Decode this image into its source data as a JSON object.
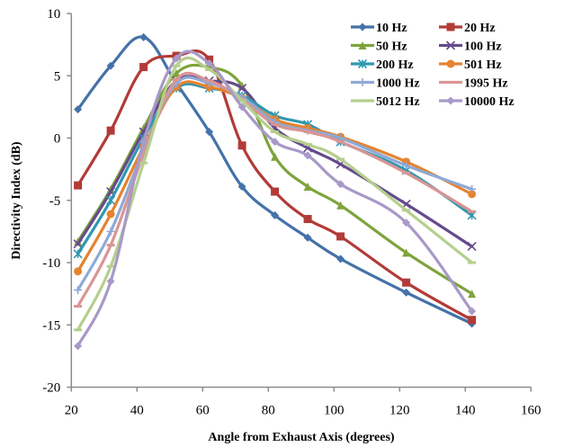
{
  "chart_data": {
    "type": "line",
    "title": "",
    "xlabel": "Angle from Exhaust Axis (degrees)",
    "ylabel": "Directivity Index (dB)",
    "xlim": [
      20,
      160
    ],
    "ylim": [
      -20,
      10
    ],
    "xticks": [
      20,
      40,
      60,
      80,
      100,
      120,
      140,
      160
    ],
    "yticks": [
      10,
      5,
      0,
      -5,
      -10,
      -15,
      -20
    ],
    "grid": false,
    "legend_position": "top-right",
    "smooth": true,
    "x": [
      22,
      32,
      42,
      52,
      62,
      72,
      82,
      92,
      102,
      122,
      142
    ],
    "series": [
      {
        "name": "10 Hz",
        "color": "#4472a8",
        "marker": "diamond",
        "values": [
          2.3,
          5.8,
          8.1,
          4.4,
          0.5,
          -3.9,
          -6.2,
          -8.0,
          -9.7,
          -12.4,
          -14.9
        ]
      },
      {
        "name": "20 Hz",
        "color": "#b23b38",
        "marker": "square",
        "values": [
          -3.8,
          0.6,
          5.7,
          6.6,
          6.3,
          -0.6,
          -4.3,
          -6.5,
          -7.9,
          -11.6,
          -14.6
        ]
      },
      {
        "name": "50 Hz",
        "color": "#7fa33c",
        "marker": "triangle",
        "values": [
          -8.3,
          -4.1,
          0.8,
          5.2,
          5.7,
          4.2,
          -1.5,
          -3.9,
          -5.4,
          -9.2,
          -12.5
        ]
      },
      {
        "name": "100 Hz",
        "color": "#654a8c",
        "marker": "x",
        "values": [
          -8.5,
          -4.3,
          0.5,
          4.6,
          4.6,
          4.0,
          0.8,
          -0.8,
          -2.1,
          -5.3,
          -8.7
        ]
      },
      {
        "name": "200 Hz",
        "color": "#2f98b0",
        "marker": "star",
        "values": [
          -9.3,
          -5.0,
          0.0,
          4.0,
          4.0,
          3.4,
          1.8,
          1.1,
          -0.3,
          -2.6,
          -6.2
        ]
      },
      {
        "name": "501 Hz",
        "color": "#e5832e",
        "marker": "circle",
        "values": [
          -10.7,
          -6.1,
          -0.7,
          4.1,
          4.1,
          3.2,
          1.5,
          0.8,
          0.1,
          -1.9,
          -4.5
        ]
      },
      {
        "name": "1000 Hz",
        "color": "#8fa9d6",
        "marker": "plus",
        "values": [
          -12.2,
          -7.5,
          -1.0,
          4.4,
          4.4,
          3.3,
          1.3,
          0.6,
          0.0,
          -2.2,
          -4.1
        ]
      },
      {
        "name": "1995 Hz",
        "color": "#d99594",
        "marker": "dash",
        "values": [
          -13.5,
          -8.6,
          -1.3,
          4.7,
          4.6,
          3.1,
          1.1,
          0.5,
          -0.3,
          -2.8,
          -5.9
        ]
      },
      {
        "name": "5012 Hz",
        "color": "#b5cf8e",
        "marker": "dash",
        "values": [
          -15.4,
          -10.3,
          -2.0,
          5.8,
          5.5,
          3.0,
          0.5,
          -0.5,
          -1.7,
          -5.8,
          -10.0
        ]
      },
      {
        "name": "10000 Hz",
        "color": "#a899c8",
        "marker": "diamond",
        "values": [
          -16.7,
          -11.5,
          -0.3,
          6.4,
          6.0,
          2.5,
          -0.3,
          -1.4,
          -3.7,
          -6.8,
          -13.9
        ]
      }
    ]
  }
}
